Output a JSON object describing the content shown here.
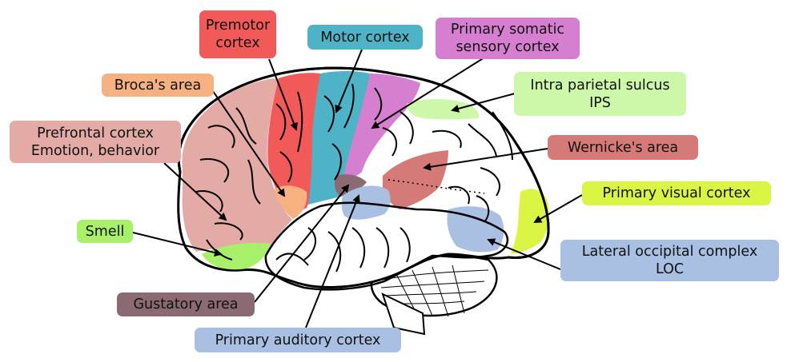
{
  "colors": {
    "premotor": "#f25a5a",
    "motor": "#4fb3c8",
    "somatic": "#d67fd0",
    "broca": "#f7b07f",
    "ips": "#cdf7a9",
    "prefrontal": "#e3aaa6",
    "wernicke": "#d67a78",
    "visual": "#dcf545",
    "smell": "#a8ef6a",
    "loc": "#a9c0e3",
    "gustatory": "#8c6a74",
    "auditory": "#a9c0e3"
  },
  "labels": {
    "premotor": [
      "Premotor",
      "cortex"
    ],
    "motor": [
      "Motor cortex"
    ],
    "somatic": [
      "Primary somatic",
      "sensory cortex"
    ],
    "broca": [
      "Broca's area"
    ],
    "ips": [
      "Intra parietal sulcus",
      "IPS"
    ],
    "prefrontal": [
      "Prefrontal cortex",
      "Emotion, behavior"
    ],
    "wernicke": [
      "Wernicke's area"
    ],
    "visual": [
      "Primary visual cortex"
    ],
    "smell": [
      "Smell"
    ],
    "loc": [
      "Lateral occipital complex",
      "LOC"
    ],
    "gustatory": [
      "Gustatory area"
    ],
    "auditory": [
      "Primary auditory cortex"
    ]
  }
}
